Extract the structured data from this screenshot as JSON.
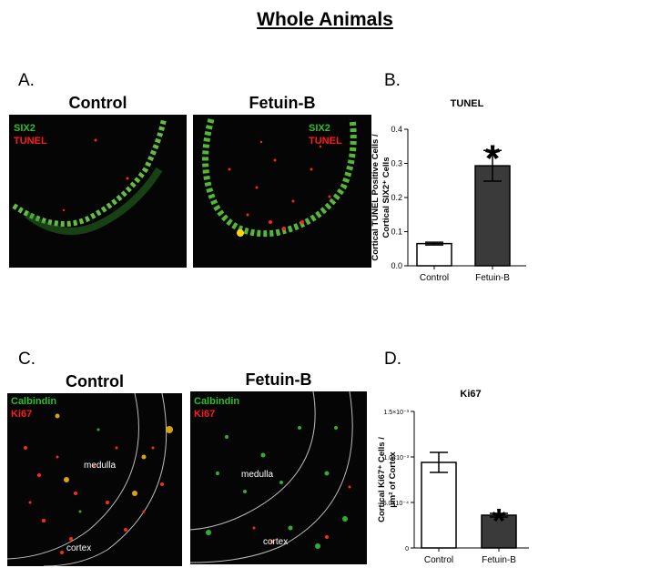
{
  "title": "Whole Animals",
  "panels": {
    "a": {
      "letter": "A.",
      "left_title": "Control",
      "right_title": "Fetuin-B",
      "legend_green": "SIX2",
      "legend_red": "TUNEL"
    },
    "b": {
      "letter": "B."
    },
    "c": {
      "letter": "C.",
      "left_title": "Control",
      "right_title": "Fetuin-B",
      "legend_green": "Calbindin",
      "legend_red": "Ki67",
      "label_medulla": "medulla",
      "label_cortex": "cortex"
    },
    "d": {
      "letter": "D."
    }
  },
  "colors": {
    "bar_control": "#ffffff",
    "bar_fetuin": "#3a3a3a",
    "green": "#2ebd2e",
    "red": "#ff1a1a"
  },
  "chart_data": [
    {
      "type": "bar",
      "title": "TUNEL",
      "ylabel_line1": "Cortical TUNEL Positive Cells /",
      "ylabel_line2": "Cortical SIX2⁺ Cells",
      "categories": [
        "Control",
        "Fetuin-B"
      ],
      "values": [
        0.065,
        0.293
      ],
      "errors": [
        0.004,
        0.045
      ],
      "significance": [
        "",
        "*"
      ],
      "ylim": [
        0,
        0.4
      ],
      "ticks": [
        0.0,
        0.1,
        0.2,
        0.3,
        0.4
      ],
      "tick_labels": [
        "0.0",
        "0.1",
        "0.2",
        "0.3",
        "0.4"
      ]
    },
    {
      "type": "bar",
      "title": "Ki67",
      "ylabel_line1": "Cortical Ki67⁺ Cells /",
      "ylabel_line2": "µm² of Cortex",
      "categories": [
        "Control",
        "Fetuin-B"
      ],
      "values": [
        0.00094,
        0.00036
      ],
      "errors": [
        0.00011,
        2e-05
      ],
      "significance": [
        "",
        "*"
      ],
      "ylim": [
        0,
        0.0015
      ],
      "ticks": [
        0,
        0.0005,
        0.001,
        0.0015
      ],
      "tick_labels": [
        "0",
        "5.0×10⁻⁴",
        "1.0×10⁻³",
        "1.5×10⁻³"
      ]
    }
  ]
}
